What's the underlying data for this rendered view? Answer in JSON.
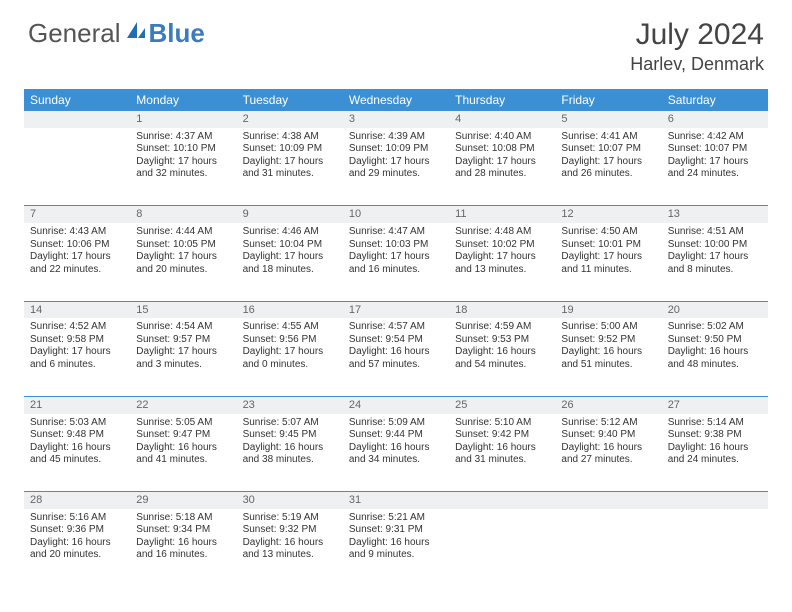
{
  "brand": {
    "part1": "General",
    "part2": "Blue"
  },
  "title": "July 2024",
  "location": "Harlev, Denmark",
  "colors": {
    "header_bg": "#3b8fd4",
    "header_text": "#ffffff",
    "daynum_bg": "#eef0f2",
    "divider": "#3b8fd4",
    "text": "#333333"
  },
  "daysOfWeek": [
    "Sunday",
    "Monday",
    "Tuesday",
    "Wednesday",
    "Thursday",
    "Friday",
    "Saturday"
  ],
  "weeks": [
    [
      {
        "n": "",
        "sunrise": "",
        "sunset": "",
        "daylight": ""
      },
      {
        "n": "1",
        "sunrise": "Sunrise: 4:37 AM",
        "sunset": "Sunset: 10:10 PM",
        "daylight": "Daylight: 17 hours and 32 minutes."
      },
      {
        "n": "2",
        "sunrise": "Sunrise: 4:38 AM",
        "sunset": "Sunset: 10:09 PM",
        "daylight": "Daylight: 17 hours and 31 minutes."
      },
      {
        "n": "3",
        "sunrise": "Sunrise: 4:39 AM",
        "sunset": "Sunset: 10:09 PM",
        "daylight": "Daylight: 17 hours and 29 minutes."
      },
      {
        "n": "4",
        "sunrise": "Sunrise: 4:40 AM",
        "sunset": "Sunset: 10:08 PM",
        "daylight": "Daylight: 17 hours and 28 minutes."
      },
      {
        "n": "5",
        "sunrise": "Sunrise: 4:41 AM",
        "sunset": "Sunset: 10:07 PM",
        "daylight": "Daylight: 17 hours and 26 minutes."
      },
      {
        "n": "6",
        "sunrise": "Sunrise: 4:42 AM",
        "sunset": "Sunset: 10:07 PM",
        "daylight": "Daylight: 17 hours and 24 minutes."
      }
    ],
    [
      {
        "n": "7",
        "sunrise": "Sunrise: 4:43 AM",
        "sunset": "Sunset: 10:06 PM",
        "daylight": "Daylight: 17 hours and 22 minutes."
      },
      {
        "n": "8",
        "sunrise": "Sunrise: 4:44 AM",
        "sunset": "Sunset: 10:05 PM",
        "daylight": "Daylight: 17 hours and 20 minutes."
      },
      {
        "n": "9",
        "sunrise": "Sunrise: 4:46 AM",
        "sunset": "Sunset: 10:04 PM",
        "daylight": "Daylight: 17 hours and 18 minutes."
      },
      {
        "n": "10",
        "sunrise": "Sunrise: 4:47 AM",
        "sunset": "Sunset: 10:03 PM",
        "daylight": "Daylight: 17 hours and 16 minutes."
      },
      {
        "n": "11",
        "sunrise": "Sunrise: 4:48 AM",
        "sunset": "Sunset: 10:02 PM",
        "daylight": "Daylight: 17 hours and 13 minutes."
      },
      {
        "n": "12",
        "sunrise": "Sunrise: 4:50 AM",
        "sunset": "Sunset: 10:01 PM",
        "daylight": "Daylight: 17 hours and 11 minutes."
      },
      {
        "n": "13",
        "sunrise": "Sunrise: 4:51 AM",
        "sunset": "Sunset: 10:00 PM",
        "daylight": "Daylight: 17 hours and 8 minutes."
      }
    ],
    [
      {
        "n": "14",
        "sunrise": "Sunrise: 4:52 AM",
        "sunset": "Sunset: 9:58 PM",
        "daylight": "Daylight: 17 hours and 6 minutes."
      },
      {
        "n": "15",
        "sunrise": "Sunrise: 4:54 AM",
        "sunset": "Sunset: 9:57 PM",
        "daylight": "Daylight: 17 hours and 3 minutes."
      },
      {
        "n": "16",
        "sunrise": "Sunrise: 4:55 AM",
        "sunset": "Sunset: 9:56 PM",
        "daylight": "Daylight: 17 hours and 0 minutes."
      },
      {
        "n": "17",
        "sunrise": "Sunrise: 4:57 AM",
        "sunset": "Sunset: 9:54 PM",
        "daylight": "Daylight: 16 hours and 57 minutes."
      },
      {
        "n": "18",
        "sunrise": "Sunrise: 4:59 AM",
        "sunset": "Sunset: 9:53 PM",
        "daylight": "Daylight: 16 hours and 54 minutes."
      },
      {
        "n": "19",
        "sunrise": "Sunrise: 5:00 AM",
        "sunset": "Sunset: 9:52 PM",
        "daylight": "Daylight: 16 hours and 51 minutes."
      },
      {
        "n": "20",
        "sunrise": "Sunrise: 5:02 AM",
        "sunset": "Sunset: 9:50 PM",
        "daylight": "Daylight: 16 hours and 48 minutes."
      }
    ],
    [
      {
        "n": "21",
        "sunrise": "Sunrise: 5:03 AM",
        "sunset": "Sunset: 9:48 PM",
        "daylight": "Daylight: 16 hours and 45 minutes."
      },
      {
        "n": "22",
        "sunrise": "Sunrise: 5:05 AM",
        "sunset": "Sunset: 9:47 PM",
        "daylight": "Daylight: 16 hours and 41 minutes."
      },
      {
        "n": "23",
        "sunrise": "Sunrise: 5:07 AM",
        "sunset": "Sunset: 9:45 PM",
        "daylight": "Daylight: 16 hours and 38 minutes."
      },
      {
        "n": "24",
        "sunrise": "Sunrise: 5:09 AM",
        "sunset": "Sunset: 9:44 PM",
        "daylight": "Daylight: 16 hours and 34 minutes."
      },
      {
        "n": "25",
        "sunrise": "Sunrise: 5:10 AM",
        "sunset": "Sunset: 9:42 PM",
        "daylight": "Daylight: 16 hours and 31 minutes."
      },
      {
        "n": "26",
        "sunrise": "Sunrise: 5:12 AM",
        "sunset": "Sunset: 9:40 PM",
        "daylight": "Daylight: 16 hours and 27 minutes."
      },
      {
        "n": "27",
        "sunrise": "Sunrise: 5:14 AM",
        "sunset": "Sunset: 9:38 PM",
        "daylight": "Daylight: 16 hours and 24 minutes."
      }
    ],
    [
      {
        "n": "28",
        "sunrise": "Sunrise: 5:16 AM",
        "sunset": "Sunset: 9:36 PM",
        "daylight": "Daylight: 16 hours and 20 minutes."
      },
      {
        "n": "29",
        "sunrise": "Sunrise: 5:18 AM",
        "sunset": "Sunset: 9:34 PM",
        "daylight": "Daylight: 16 hours and 16 minutes."
      },
      {
        "n": "30",
        "sunrise": "Sunrise: 5:19 AM",
        "sunset": "Sunset: 9:32 PM",
        "daylight": "Daylight: 16 hours and 13 minutes."
      },
      {
        "n": "31",
        "sunrise": "Sunrise: 5:21 AM",
        "sunset": "Sunset: 9:31 PM",
        "daylight": "Daylight: 16 hours and 9 minutes."
      },
      {
        "n": "",
        "sunrise": "",
        "sunset": "",
        "daylight": ""
      },
      {
        "n": "",
        "sunrise": "",
        "sunset": "",
        "daylight": ""
      },
      {
        "n": "",
        "sunrise": "",
        "sunset": "",
        "daylight": ""
      }
    ]
  ]
}
